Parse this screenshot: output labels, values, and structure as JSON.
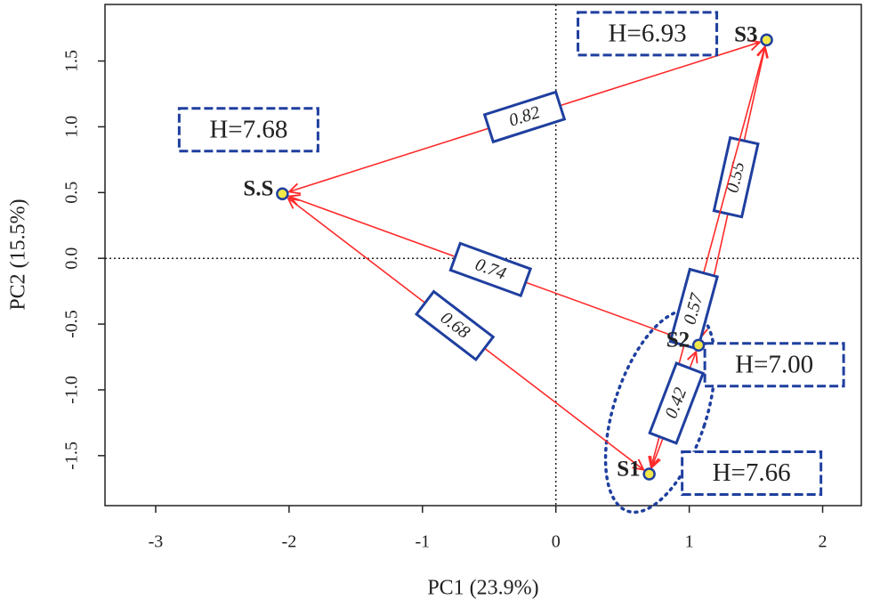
{
  "chart_data": {
    "type": "scatter",
    "xlabel": "PC1 (23.9%)",
    "ylabel": "PC2 (15.5%)",
    "xlim": [
      -3.38,
      2.29
    ],
    "ylim": [
      -1.88,
      1.93
    ],
    "xticks": [
      -3,
      -2,
      -1,
      0,
      1,
      2
    ],
    "yticks": [
      -1.5,
      {
        "value": -1.0,
        "label": "-1.0"
      },
      -0.5,
      {
        "value": 0.0,
        "label": "0.0"
      },
      0.5,
      {
        "value": 1.0,
        "label": "1.0"
      },
      1.5
    ],
    "points": [
      {
        "label": "S.S",
        "x": -2.05,
        "y": 0.49,
        "annotation": "H=7.68"
      },
      {
        "label": "S3",
        "x": 1.58,
        "y": 1.66,
        "annotation": "H=6.93"
      },
      {
        "label": "S2",
        "x": 1.07,
        "y": -0.66,
        "annotation": "H=7.00"
      },
      {
        "label": "S1",
        "x": 0.7,
        "y": -1.64,
        "annotation": "H=7.66"
      }
    ],
    "edges": [
      {
        "from": "S.S",
        "to": "S3",
        "value": 0.82
      },
      {
        "from": "S.S",
        "to": "S2",
        "value": 0.74
      },
      {
        "from": "S.S",
        "to": "S1",
        "value": 0.68
      },
      {
        "from": "S3",
        "to": "S2",
        "value": 0.55
      },
      {
        "from": "S3",
        "to": "S1",
        "value": 0.57
      },
      {
        "from": "S2",
        "to": "S1",
        "value": 0.42
      }
    ],
    "color": "#ff2a2a",
    "point_color": "#f2e84a",
    "box_color": "#1f3f9f"
  }
}
